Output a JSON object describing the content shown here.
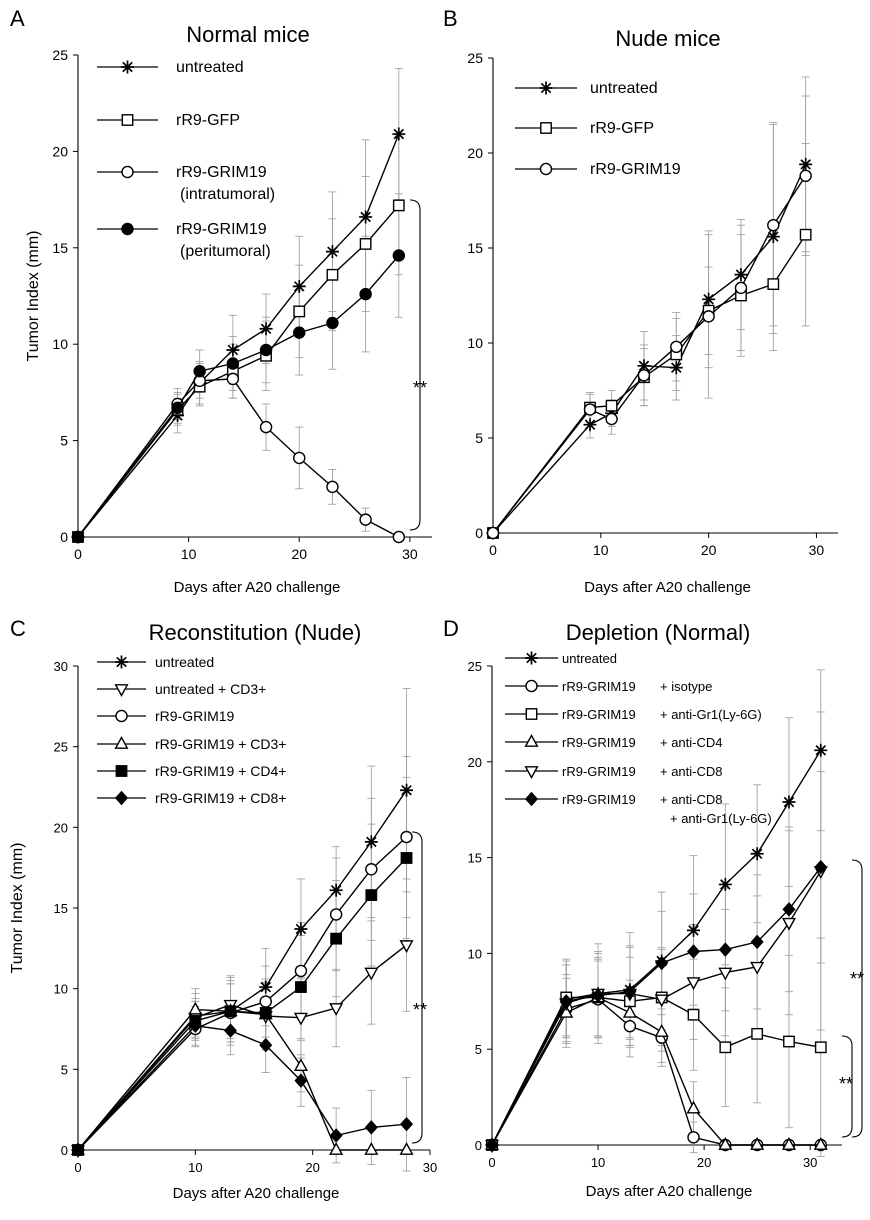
{
  "chart_data": [
    {
      "panel": "A",
      "type": "line",
      "title": "Normal mice",
      "xlabel": "Days after A20 challenge",
      "ylabel": "Tumor Index (mm)",
      "xlim": [
        0,
        32
      ],
      "ylim": [
        0,
        25
      ],
      "xticks": [
        0,
        10,
        20,
        30
      ],
      "yticks": [
        0,
        5,
        10,
        15,
        20,
        25
      ],
      "legend_position": "top-left",
      "annotation": "**",
      "series": [
        {
          "name": "untreated",
          "marker": "star",
          "x": [
            0,
            9,
            11,
            14,
            17,
            20,
            23,
            26,
            29
          ],
          "y": [
            0,
            6.3,
            8.0,
            9.7,
            10.8,
            13.0,
            14.8,
            16.6,
            20.9
          ],
          "err": [
            0,
            0.9,
            1.1,
            1.8,
            1.8,
            2.6,
            3.1,
            4.0,
            3.4
          ]
        },
        {
          "name": "rR9-GFP",
          "marker": "square",
          "x": [
            0,
            9,
            11,
            14,
            17,
            20,
            23,
            26,
            29
          ],
          "y": [
            0,
            6.6,
            7.8,
            8.6,
            9.4,
            11.7,
            13.6,
            15.2,
            17.2
          ],
          "err": [
            0,
            0.8,
            1.0,
            1.4,
            1.8,
            2.4,
            2.9,
            3.5,
            3.6
          ]
        },
        {
          "name": "rR9-GRIM19",
          "note": "(intratumoral)",
          "marker": "circle-open",
          "x": [
            0,
            9,
            11,
            14,
            17,
            20,
            23,
            26,
            29
          ],
          "y": [
            0,
            6.9,
            8.1,
            8.2,
            5.7,
            4.1,
            2.6,
            0.9,
            0
          ],
          "err": [
            0,
            0.8,
            0.9,
            1.0,
            1.2,
            1.6,
            0.9,
            0.6,
            0
          ]
        },
        {
          "name": "rR9-GRIM19",
          "note": "(peritumoral)",
          "marker": "circle-filled",
          "x": [
            0,
            9,
            11,
            14,
            17,
            20,
            23,
            26,
            29
          ],
          "y": [
            0,
            6.7,
            8.6,
            9.0,
            9.7,
            10.6,
            11.1,
            12.6,
            14.6
          ],
          "err": [
            0,
            0.8,
            1.1,
            1.4,
            1.7,
            2.2,
            2.4,
            3.0,
            3.2
          ]
        }
      ]
    },
    {
      "panel": "B",
      "type": "line",
      "title": "Nude mice",
      "xlabel": "Days after A20 challenge",
      "ylabel": "",
      "xlim": [
        0,
        32
      ],
      "ylim": [
        0,
        25
      ],
      "xticks": [
        0,
        10,
        20,
        30
      ],
      "yticks": [
        0,
        5,
        10,
        15,
        20,
        25
      ],
      "legend_position": "top-left",
      "series": [
        {
          "name": "untreated",
          "marker": "star",
          "x": [
            0,
            9,
            11,
            14,
            17,
            20,
            23,
            26,
            29
          ],
          "y": [
            0,
            5.7,
            6.3,
            8.8,
            8.7,
            12.3,
            13.6,
            15.6,
            19.4
          ],
          "err": [
            0,
            0.7,
            0.7,
            1.8,
            1.7,
            3.6,
            2.9,
            6.0,
            4.6
          ]
        },
        {
          "name": "rR9-GFP",
          "marker": "square",
          "x": [
            0,
            9,
            11,
            14,
            17,
            20,
            23,
            26,
            29
          ],
          "y": [
            0,
            6.6,
            6.7,
            8.2,
            9.4,
            11.7,
            12.5,
            13.1,
            15.7
          ],
          "err": [
            0,
            0.8,
            0.8,
            1.5,
            1.9,
            2.3,
            3.2,
            2.6,
            4.8
          ]
        },
        {
          "name": "rR9-GRIM19",
          "marker": "circle-open",
          "x": [
            0,
            9,
            11,
            14,
            17,
            20,
            23,
            26,
            29
          ],
          "y": [
            0,
            6.5,
            6.0,
            8.3,
            9.8,
            11.4,
            12.9,
            16.2,
            18.8
          ],
          "err": [
            0,
            0.8,
            0.8,
            1.6,
            1.8,
            4.3,
            3.3,
            5.3,
            4.2
          ]
        }
      ]
    },
    {
      "panel": "C",
      "type": "line",
      "title": "Reconstitution (Nude)",
      "xlabel": "Days after A20 challenge",
      "ylabel": "Tumor Index (mm)",
      "xlim": [
        0,
        30
      ],
      "ylim": [
        0,
        30
      ],
      "xticks": [
        0,
        10,
        20,
        30
      ],
      "yticks": [
        0,
        5,
        10,
        15,
        20,
        25,
        30
      ],
      "legend_position": "top-left",
      "annotation": "**",
      "series": [
        {
          "name": "untreated",
          "marker": "star",
          "x": [
            0,
            10,
            13,
            16,
            19,
            22,
            25,
            28
          ],
          "y": [
            0,
            8.3,
            8.6,
            10.1,
            13.7,
            16.1,
            19.1,
            22.3
          ],
          "err": [
            0,
            1.4,
            2.1,
            2.4,
            3.1,
            2.7,
            4.7,
            6.3
          ]
        },
        {
          "name": "untreated + CD3+",
          "marker": "triangle-down",
          "x": [
            0,
            10,
            13,
            16,
            19,
            22,
            25,
            28
          ],
          "y": [
            0,
            8.2,
            9.0,
            8.3,
            8.2,
            8.8,
            11.0,
            12.7
          ],
          "err": [
            0,
            1.2,
            1.8,
            2.1,
            2.5,
            2.4,
            3.2,
            4.1
          ]
        },
        {
          "name": "rR9-GRIM19",
          "marker": "circle-open",
          "x": [
            0,
            10,
            13,
            16,
            19,
            22,
            25,
            28
          ],
          "y": [
            0,
            7.5,
            8.5,
            9.2,
            11.1,
            14.6,
            17.4,
            19.4
          ],
          "err": [
            0,
            1.1,
            1.8,
            2.2,
            3.0,
            3.5,
            4.4,
            5.0
          ]
        },
        {
          "name": "rR9-GRIM19 + CD3+",
          "marker": "triangle-up",
          "x": [
            0,
            10,
            13,
            16,
            19,
            22,
            25,
            28
          ],
          "y": [
            0,
            8.7,
            8.6,
            8.4,
            5.2,
            0,
            0,
            0
          ],
          "err": [
            0,
            1.3,
            1.7,
            1.9,
            1.6,
            0,
            0,
            0
          ]
        },
        {
          "name": "rR9-GRIM19 + CD4+",
          "marker": "square-filled",
          "x": [
            0,
            10,
            13,
            16,
            19,
            22,
            25,
            28
          ],
          "y": [
            0,
            8.0,
            8.6,
            8.5,
            10.1,
            13.1,
            15.8,
            18.1
          ],
          "err": [
            0,
            1.2,
            1.9,
            2.1,
            3.2,
            3.6,
            4.4,
            5.0
          ]
        },
        {
          "name": "rR9-GRIM19 + CD8+",
          "marker": "diamond-filled",
          "x": [
            0,
            10,
            13,
            16,
            19,
            22,
            25,
            28
          ],
          "y": [
            0,
            7.7,
            7.4,
            6.5,
            4.3,
            0.9,
            1.4,
            1.6
          ],
          "err": [
            0,
            1.2,
            1.5,
            1.7,
            1.6,
            1.7,
            2.3,
            2.9
          ]
        }
      ]
    },
    {
      "panel": "D",
      "type": "line",
      "title": "Depletion (Normal)",
      "xlabel": "Days after A20 challenge",
      "ylabel": "",
      "xlim": [
        0,
        33
      ],
      "ylim": [
        0,
        25
      ],
      "xticks": [
        0,
        10,
        20,
        30
      ],
      "yticks": [
        0,
        5,
        10,
        15,
        20,
        25
      ],
      "legend_position": "top-left",
      "annotations": [
        "**",
        "**"
      ],
      "series": [
        {
          "name": "untreated",
          "marker": "star",
          "x": [
            0,
            7,
            10,
            13,
            16,
            19,
            22,
            25,
            28,
            31
          ],
          "y": [
            0,
            7.6,
            7.9,
            8.1,
            9.6,
            11.2,
            13.6,
            15.2,
            17.9,
            20.6
          ],
          "err": [
            0,
            2.0,
            2.6,
            3.0,
            3.6,
            3.9,
            4.2,
            3.6,
            4.4,
            4.2
          ]
        },
        {
          "name": "rR9-GRIM19",
          "treatment": "+ isotype",
          "marker": "circle-open",
          "x": [
            0,
            7,
            10,
            13,
            16,
            19,
            22,
            25,
            28,
            31
          ],
          "y": [
            0,
            7.1,
            7.6,
            6.2,
            5.6,
            0.4,
            0,
            0,
            0,
            0
          ],
          "err": [
            0,
            1.8,
            2.0,
            1.6,
            1.5,
            0.8,
            0,
            0,
            0,
            0
          ]
        },
        {
          "name": "rR9-GRIM19",
          "treatment": "+ anti-Gr1(Ly-6G)",
          "marker": "square",
          "x": [
            0,
            7,
            10,
            13,
            16,
            19,
            22,
            25,
            28,
            31
          ],
          "y": [
            0,
            7.7,
            7.7,
            7.5,
            7.7,
            6.8,
            5.1,
            5.8,
            5.4,
            5.1
          ],
          "err": [
            0,
            2.0,
            2.1,
            2.3,
            2.5,
            2.9,
            3.1,
            3.6,
            4.5,
            5.7
          ]
        },
        {
          "name": "rR9-GRIM19",
          "treatment": "+ anti-CD4",
          "marker": "triangle-up",
          "x": [
            0,
            7,
            10,
            13,
            16,
            19,
            22,
            25,
            28,
            31
          ],
          "y": [
            0,
            6.9,
            7.7,
            6.9,
            5.9,
            1.9,
            0,
            0,
            0,
            0
          ],
          "err": [
            0,
            1.8,
            2.0,
            1.7,
            1.6,
            1.4,
            0,
            0,
            0,
            0
          ]
        },
        {
          "name": "rR9-GRIM19",
          "treatment": "+ anti-CD8",
          "marker": "triangle-down",
          "x": [
            0,
            7,
            10,
            13,
            16,
            19,
            22,
            25,
            28,
            31
          ],
          "y": [
            0,
            7.4,
            7.9,
            7.9,
            7.6,
            8.5,
            9.0,
            9.3,
            11.6,
            14.3
          ],
          "err": [
            0,
            2.0,
            2.2,
            2.4,
            2.7,
            3.0,
            3.3,
            3.7,
            4.8,
            8.3
          ]
        },
        {
          "name": "rR9-GRIM19",
          "treatment": "+ anti-CD8",
          "treatment2": "+ anti-Gr1(Ly-6G)",
          "marker": "diamond-filled",
          "x": [
            0,
            7,
            10,
            13,
            16,
            19,
            22,
            25,
            28,
            31
          ],
          "y": [
            0,
            7.5,
            7.8,
            8.0,
            9.5,
            10.1,
            10.2,
            10.6,
            12.3,
            14.5
          ],
          "err": [
            0,
            1.9,
            2.2,
            2.4,
            2.7,
            3.0,
            3.2,
            3.5,
            4.3,
            5.0
          ]
        }
      ]
    }
  ]
}
